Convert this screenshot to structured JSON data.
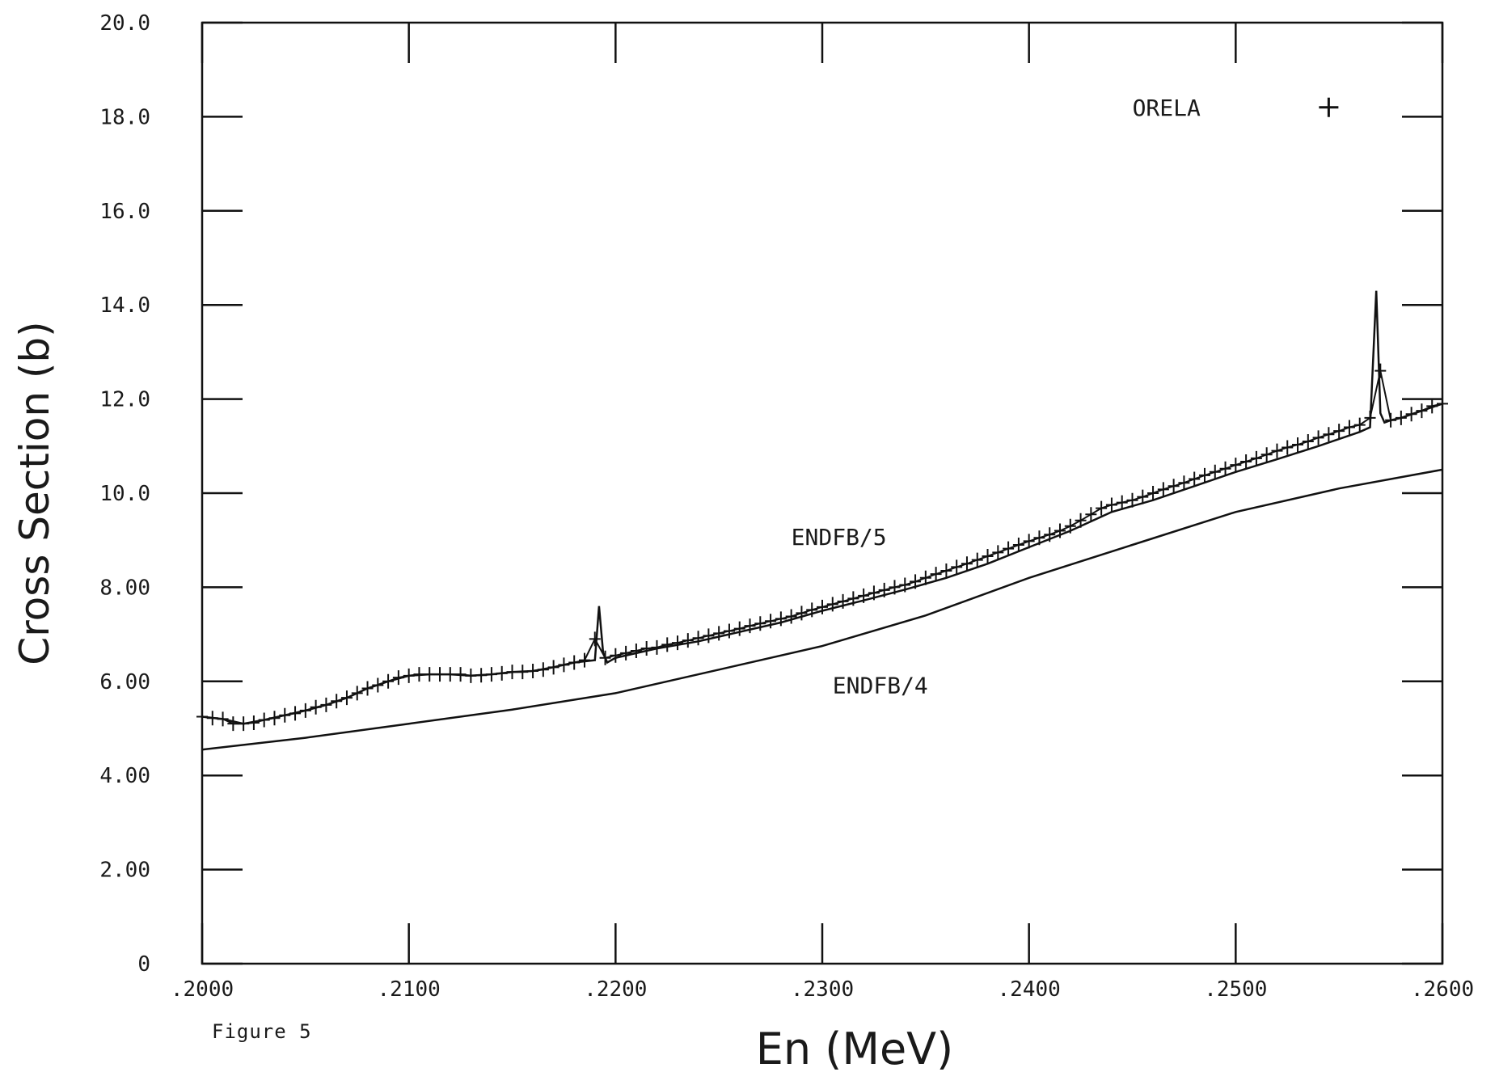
{
  "caption": "Figure 5",
  "chart_data": {
    "type": "line",
    "xlabel": "En (MeV)",
    "ylabel": "Cross Section (b)",
    "xlim": [
      0.2,
      0.26
    ],
    "ylim": [
      0,
      20
    ],
    "x_tick_labels": [
      ".2000",
      ".2100",
      ".2200",
      ".2300",
      ".2400",
      ".2500",
      ".2600"
    ],
    "y_tick_labels": [
      "0",
      "2.00",
      "4.00",
      "6.00",
      "8.00",
      "10.0",
      "12.0",
      "14.0",
      "16.0",
      "18.0",
      "20.0"
    ],
    "legend": {
      "label": "ORELA",
      "marker": "+",
      "position": "top-right"
    },
    "annotations": [
      "ENDFB/5",
      "ENDFB/4"
    ],
    "series": [
      {
        "name": "ORELA",
        "style": "plus-markers",
        "x": [
          0.2,
          0.2005,
          0.201,
          0.2015,
          0.202,
          0.2025,
          0.203,
          0.2035,
          0.204,
          0.2045,
          0.205,
          0.2055,
          0.206,
          0.2065,
          0.207,
          0.2075,
          0.208,
          0.2085,
          0.209,
          0.2095,
          0.21,
          0.2105,
          0.211,
          0.2115,
          0.212,
          0.2125,
          0.213,
          0.2135,
          0.214,
          0.2145,
          0.215,
          0.2155,
          0.216,
          0.2165,
          0.217,
          0.2175,
          0.218,
          0.2185,
          0.219,
          0.2195,
          0.22,
          0.2205,
          0.221,
          0.2215,
          0.222,
          0.2225,
          0.223,
          0.2235,
          0.224,
          0.2245,
          0.225,
          0.2255,
          0.226,
          0.2265,
          0.227,
          0.2275,
          0.228,
          0.2285,
          0.229,
          0.2295,
          0.23,
          0.2305,
          0.231,
          0.2315,
          0.232,
          0.2325,
          0.233,
          0.2335,
          0.234,
          0.2345,
          0.235,
          0.2355,
          0.236,
          0.2365,
          0.237,
          0.2375,
          0.238,
          0.2385,
          0.239,
          0.2395,
          0.24,
          0.2405,
          0.241,
          0.2415,
          0.242,
          0.2425,
          0.243,
          0.2435,
          0.244,
          0.2445,
          0.245,
          0.2455,
          0.246,
          0.2465,
          0.247,
          0.2475,
          0.248,
          0.2485,
          0.249,
          0.2495,
          0.25,
          0.2505,
          0.251,
          0.2515,
          0.252,
          0.2525,
          0.253,
          0.2535,
          0.254,
          0.2545,
          0.255,
          0.2555,
          0.256,
          0.2565,
          0.257,
          0.2575,
          0.258,
          0.2585,
          0.259,
          0.2595,
          0.26
        ],
        "values": [
          5.25,
          5.22,
          5.2,
          5.1,
          5.1,
          5.12,
          5.18,
          5.22,
          5.28,
          5.32,
          5.38,
          5.45,
          5.5,
          5.58,
          5.65,
          5.75,
          5.85,
          5.92,
          6.0,
          6.08,
          6.12,
          6.15,
          6.15,
          6.15,
          6.15,
          6.15,
          6.12,
          6.13,
          6.15,
          6.17,
          6.2,
          6.2,
          6.22,
          6.25,
          6.3,
          6.35,
          6.4,
          6.45,
          6.9,
          6.5,
          6.55,
          6.6,
          6.65,
          6.7,
          6.72,
          6.78,
          6.82,
          6.87,
          6.92,
          6.97,
          7.02,
          7.07,
          7.12,
          7.18,
          7.23,
          7.28,
          7.33,
          7.38,
          7.45,
          7.52,
          7.58,
          7.64,
          7.7,
          7.76,
          7.82,
          7.88,
          7.94,
          8.0,
          8.05,
          8.12,
          8.2,
          8.28,
          8.35,
          8.43,
          8.5,
          8.58,
          8.66,
          8.74,
          8.82,
          8.9,
          8.98,
          9.05,
          9.12,
          9.2,
          9.3,
          9.42,
          9.55,
          9.68,
          9.75,
          9.8,
          9.85,
          9.92,
          10.0,
          10.08,
          10.15,
          10.22,
          10.3,
          10.38,
          10.45,
          10.52,
          10.6,
          10.67,
          10.74,
          10.82,
          10.9,
          10.97,
          11.03,
          11.1,
          11.18,
          11.25,
          11.32,
          11.4,
          11.45,
          11.6,
          12.6,
          11.55,
          11.6,
          11.68,
          11.75,
          11.85,
          11.9
        ]
      },
      {
        "name": "ENDFB/5",
        "style": "line",
        "x": [
          0.2,
          0.201,
          0.202,
          0.203,
          0.204,
          0.205,
          0.206,
          0.207,
          0.208,
          0.209,
          0.21,
          0.211,
          0.212,
          0.213,
          0.214,
          0.215,
          0.216,
          0.217,
          0.218,
          0.219,
          0.2192,
          0.2194,
          0.2196,
          0.2198,
          0.22,
          0.221,
          0.222,
          0.224,
          0.226,
          0.228,
          0.23,
          0.232,
          0.234,
          0.236,
          0.238,
          0.24,
          0.242,
          0.244,
          0.246,
          0.248,
          0.25,
          0.252,
          0.254,
          0.256,
          0.2565,
          0.2568,
          0.257,
          0.2572,
          0.2575,
          0.258,
          0.26
        ],
        "values": [
          5.25,
          5.2,
          5.1,
          5.18,
          5.28,
          5.38,
          5.5,
          5.65,
          5.85,
          6.0,
          6.12,
          6.15,
          6.15,
          6.12,
          6.15,
          6.2,
          6.22,
          6.3,
          6.4,
          6.45,
          7.6,
          6.6,
          6.4,
          6.45,
          6.5,
          6.6,
          6.7,
          6.85,
          7.05,
          7.25,
          7.5,
          7.72,
          7.95,
          8.2,
          8.5,
          8.85,
          9.2,
          9.6,
          9.85,
          10.15,
          10.45,
          10.72,
          11.0,
          11.3,
          11.4,
          14.3,
          11.7,
          11.5,
          11.55,
          11.6,
          11.9
        ]
      },
      {
        "name": "ENDFB/4",
        "style": "line",
        "x": [
          0.2,
          0.205,
          0.21,
          0.215,
          0.22,
          0.225,
          0.23,
          0.235,
          0.24,
          0.245,
          0.25,
          0.255,
          0.26
        ],
        "values": [
          4.55,
          4.8,
          5.1,
          5.4,
          5.75,
          6.25,
          6.75,
          7.4,
          8.2,
          8.9,
          9.6,
          10.1,
          10.5
        ]
      }
    ]
  }
}
